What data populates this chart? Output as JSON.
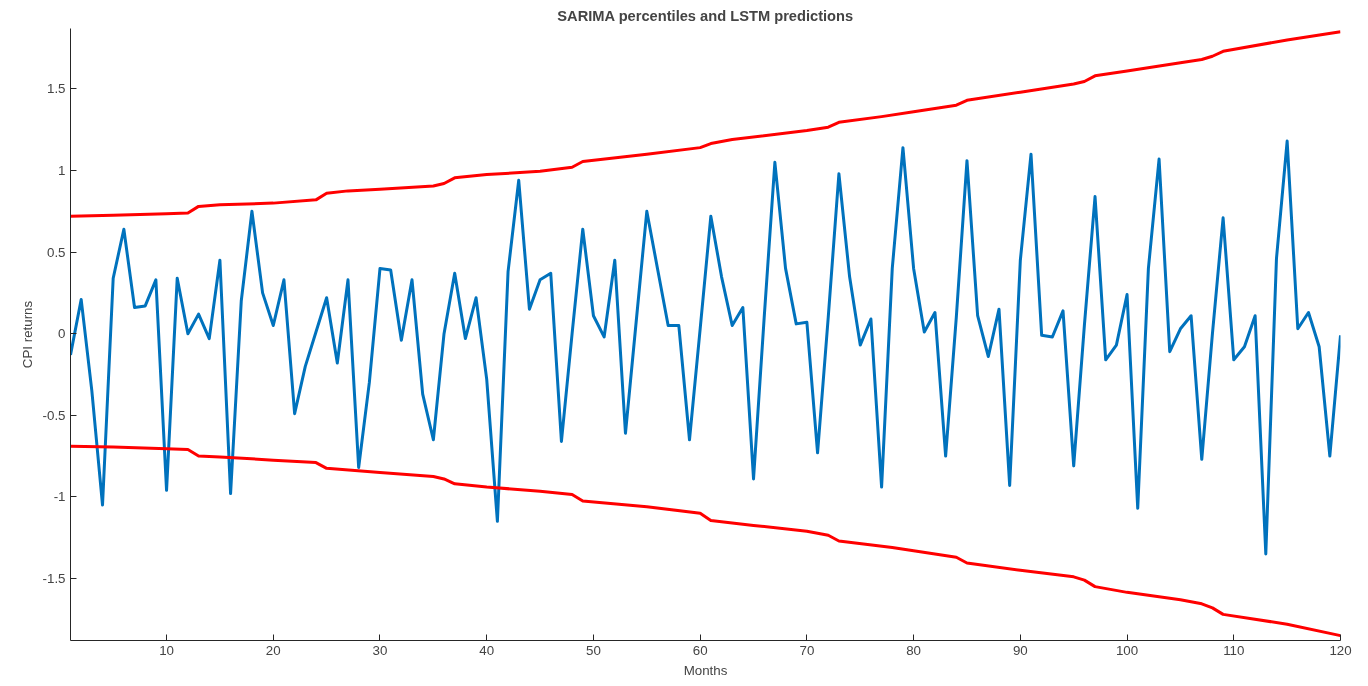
{
  "chart_data": {
    "type": "line",
    "title": "SARIMA percentiles and LSTM predictions",
    "xlabel": "Months",
    "ylabel": "CPI returns",
    "xlim": [
      1,
      120
    ],
    "ylim": [
      -1.88,
      1.87
    ],
    "xticks": [
      10,
      20,
      30,
      40,
      50,
      60,
      70,
      80,
      90,
      100,
      110,
      120
    ],
    "yticks": [
      -1.5,
      -1,
      -0.5,
      0,
      0.5,
      1,
      1.5
    ],
    "line_style": "solid",
    "marker": "none",
    "series": [
      {
        "color": "#0072bd",
        "x": [
          1,
          2,
          3,
          4,
          5,
          6,
          7,
          8,
          9,
          10,
          11,
          12,
          13,
          14,
          15,
          16,
          17,
          18,
          19,
          20,
          21,
          22,
          23,
          24,
          25,
          26,
          27,
          28,
          29,
          30,
          31,
          32,
          33,
          34,
          35,
          36,
          37,
          38,
          39,
          40,
          41,
          42,
          43,
          44,
          45,
          46,
          47,
          48,
          49,
          50,
          51,
          52,
          53,
          54,
          55,
          56,
          57,
          58,
          59,
          60,
          61,
          62,
          63,
          64,
          65,
          66,
          67,
          68,
          69,
          70,
          71,
          72,
          73,
          74,
          75,
          76,
          77,
          78,
          79,
          80,
          81,
          82,
          83,
          84,
          85,
          86,
          87,
          88,
          89,
          90,
          91,
          92,
          93,
          94,
          95,
          96,
          97,
          98,
          99,
          100,
          101,
          102,
          103,
          104,
          105,
          106,
          107,
          108,
          109,
          110,
          111,
          112,
          113,
          114,
          115,
          116,
          117,
          118,
          119,
          120
        ],
        "values": [
          -0.13,
          0.21,
          -0.35,
          -1.05,
          0.34,
          0.64,
          0.16,
          0.17,
          0.33,
          -0.96,
          0.34,
          0.0,
          0.12,
          -0.03,
          0.45,
          -0.98,
          0.2,
          0.75,
          0.25,
          0.05,
          0.33,
          -0.49,
          -0.2,
          0.01,
          0.22,
          -0.18,
          0.33,
          -0.82,
          -0.3,
          0.4,
          0.39,
          -0.04,
          0.33,
          -0.37,
          -0.65,
          0.0,
          0.37,
          -0.03,
          0.22,
          -0.28,
          -1.15,
          0.38,
          0.94,
          0.15,
          0.33,
          0.37,
          -0.66,
          0.0,
          0.64,
          0.11,
          -0.02,
          0.45,
          -0.61,
          0.07,
          0.75,
          0.4,
          0.05,
          0.05,
          -0.65,
          0.03,
          0.72,
          0.35,
          0.05,
          0.16,
          -0.89,
          0.1,
          1.05,
          0.4,
          0.06,
          0.07,
          -0.73,
          0.1,
          0.98,
          0.35,
          -0.07,
          0.09,
          -0.94,
          0.4,
          1.14,
          0.4,
          0.01,
          0.13,
          -0.75,
          0.1,
          1.06,
          0.11,
          -0.14,
          0.15,
          -0.93,
          0.45,
          1.1,
          -0.01,
          -0.02,
          0.14,
          -0.81,
          0.05,
          0.84,
          -0.16,
          -0.07,
          0.24,
          -1.07,
          0.4,
          1.07,
          -0.11,
          0.03,
          0.11,
          -0.77,
          0.0,
          0.71,
          -0.16,
          -0.08,
          0.11,
          -1.35,
          0.46,
          1.18,
          0.03,
          0.13,
          -0.08,
          -0.75,
          -0.01
        ]
      },
      {
        "color": "#ff0000",
        "x": [
          1,
          5,
          10,
          12,
          13,
          15,
          20,
          24,
          25,
          27,
          30,
          35,
          36,
          37,
          40,
          45,
          48,
          49,
          55,
          60,
          61,
          63,
          70,
          72,
          73,
          77,
          80,
          84,
          85,
          90,
          95,
          96,
          97,
          100,
          105,
          107,
          108,
          109,
          115,
          120
        ],
        "values": [
          0.72,
          0.725,
          0.735,
          0.74,
          0.78,
          0.79,
          0.8,
          0.82,
          0.86,
          0.875,
          0.885,
          0.905,
          0.92,
          0.955,
          0.975,
          0.995,
          1.02,
          1.055,
          1.1,
          1.14,
          1.165,
          1.19,
          1.245,
          1.265,
          1.295,
          1.33,
          1.36,
          1.4,
          1.43,
          1.48,
          1.53,
          1.545,
          1.58,
          1.61,
          1.66,
          1.68,
          1.7,
          1.73,
          1.8,
          1.85
        ]
      },
      {
        "color": "#ff0000",
        "x": [
          1,
          5,
          10,
          12,
          13,
          15,
          20,
          24,
          25,
          30,
          35,
          36,
          37,
          40,
          45,
          48,
          49,
          55,
          60,
          61,
          65,
          70,
          72,
          73,
          78,
          80,
          84,
          85,
          90,
          95,
          96,
          97,
          100,
          105,
          107,
          108,
          109,
          115,
          120
        ],
        "values": [
          -0.69,
          -0.695,
          -0.705,
          -0.71,
          -0.75,
          -0.755,
          -0.775,
          -0.79,
          -0.825,
          -0.85,
          -0.875,
          -0.89,
          -0.92,
          -0.94,
          -0.965,
          -0.985,
          -1.025,
          -1.06,
          -1.1,
          -1.145,
          -1.175,
          -1.21,
          -1.235,
          -1.27,
          -1.31,
          -1.33,
          -1.37,
          -1.405,
          -1.45,
          -1.49,
          -1.51,
          -1.55,
          -1.585,
          -1.63,
          -1.655,
          -1.68,
          -1.72,
          -1.78,
          -1.85
        ]
      }
    ]
  }
}
